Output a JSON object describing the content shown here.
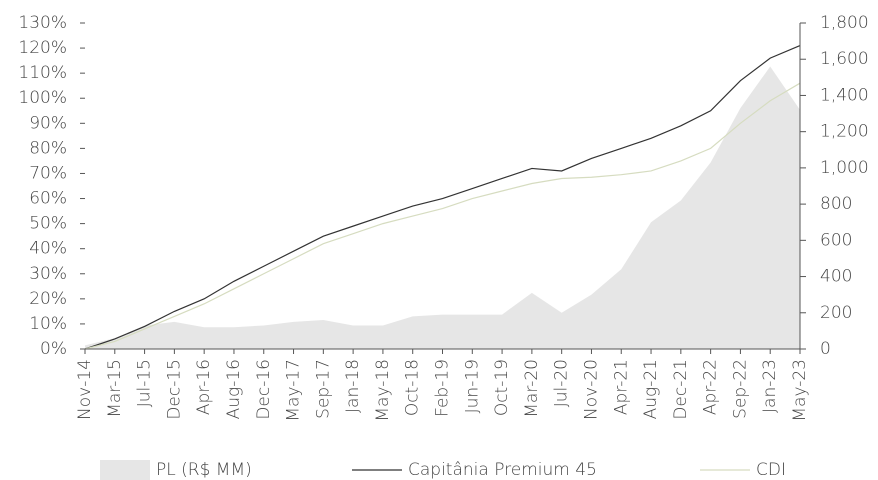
{
  "chart_data": {
    "type": "line",
    "categories": [
      "Nov-14",
      "Mar-15",
      "Jul-15",
      "Dec-15",
      "Apr-16",
      "Aug-16",
      "Dec-16",
      "May-17",
      "Sep-17",
      "Jan-18",
      "May-18",
      "Oct-18",
      "Feb-19",
      "Jun-19",
      "Oct-19",
      "Mar-20",
      "Jul-20",
      "Nov-20",
      "Apr-21",
      "Aug-21",
      "Dec-21",
      "Apr-22",
      "Sep-22",
      "Jan-23",
      "May-23"
    ],
    "series": [
      {
        "name": "PL (R$ MM)",
        "color": "#e6e6e6",
        "axis": "y2",
        "kind": "area",
        "values": [
          20,
          60,
          130,
          150,
          120,
          120,
          130,
          150,
          160,
          130,
          130,
          180,
          190,
          190,
          190,
          310,
          200,
          300,
          440,
          700,
          820,
          1030,
          1330,
          1560,
          1320
        ]
      },
      {
        "name": "Capitânia Premium 45",
        "color": "#333333",
        "values": [
          0,
          4,
          9,
          15,
          20,
          27,
          33,
          39,
          45,
          49,
          53,
          57,
          60,
          64,
          68,
          72,
          71,
          76,
          80,
          84,
          89,
          95,
          107,
          116,
          121
        ]
      },
      {
        "name": "CDI",
        "color": "#d6dcc0",
        "values": [
          0,
          3,
          8,
          13,
          18,
          24,
          30,
          36,
          42,
          46,
          50,
          53,
          56,
          60,
          63,
          66,
          68,
          68.5,
          69.5,
          71,
          75,
          80,
          90,
          99,
          106
        ]
      }
    ],
    "ylim": [
      0,
      130
    ],
    "yticks": [
      {
        "value": 0,
        "label": "0%"
      },
      {
        "value": 10,
        "label": "10%"
      },
      {
        "value": 20,
        "label": "20%"
      },
      {
        "value": 30,
        "label": "30%"
      },
      {
        "value": 40,
        "label": "40%"
      },
      {
        "value": 50,
        "label": "50%"
      },
      {
        "value": 60,
        "label": "60%"
      },
      {
        "value": 70,
        "label": "70%"
      },
      {
        "value": 80,
        "label": "80%"
      },
      {
        "value": 90,
        "label": "90%"
      },
      {
        "value": 100,
        "label": "100%"
      },
      {
        "value": 110,
        "label": "110%"
      },
      {
        "value": 120,
        "label": "120%"
      },
      {
        "value": 130,
        "label": "130%"
      }
    ],
    "y2lim": [
      0,
      1800
    ],
    "y2ticks": [
      0,
      200,
      400,
      600,
      800,
      {
        "value": 1000,
        "label": "1,000"
      },
      {
        "value": 1200,
        "label": "1,200"
      },
      {
        "value": 1400,
        "label": "1,400"
      },
      {
        "value": 1600,
        "label": "1,600"
      },
      {
        "value": 1800,
        "label": "1,800"
      }
    ],
    "legend": "bottom"
  }
}
